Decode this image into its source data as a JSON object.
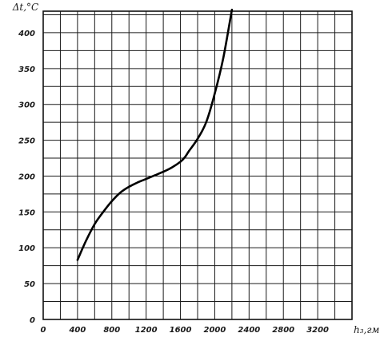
{
  "chart_data": {
    "type": "line",
    "ylabel": "Δt,°C",
    "xlabel": "h₃,гм",
    "xlim": [
      0,
      3600
    ],
    "ylim": [
      0,
      430
    ],
    "x_tick_labels": [
      "0",
      "400",
      "800",
      "1200",
      "1600",
      "2000",
      "2400",
      "2800",
      "3200"
    ],
    "x_tick_values": [
      0,
      400,
      800,
      1200,
      1600,
      2000,
      2400,
      2800,
      3200
    ],
    "y_tick_labels": [
      "0",
      "50",
      "100",
      "150",
      "200",
      "250",
      "300",
      "350",
      "400"
    ],
    "y_tick_values": [
      0,
      50,
      100,
      150,
      200,
      250,
      300,
      350,
      400
    ],
    "grid": true,
    "grid_minor_x_step": 200,
    "grid_minor_y_step": 25,
    "series": [
      {
        "x": [
          400,
          500,
          600,
          700,
          800,
          900,
          1000,
          1100,
          1200,
          1300,
          1400,
          1500,
          1600,
          1650,
          1700,
          1800,
          1900,
          2000,
          2100,
          2200
        ],
        "y": [
          83,
          110,
          133,
          150,
          165,
          177,
          185,
          191,
          196,
          201,
          206,
          212,
          220,
          226,
          235,
          252,
          275,
          315,
          365,
          432
        ]
      }
    ],
    "colors": {
      "line": "#000000",
      "grid": "#1a1a1a",
      "background": "#ffffff"
    }
  }
}
